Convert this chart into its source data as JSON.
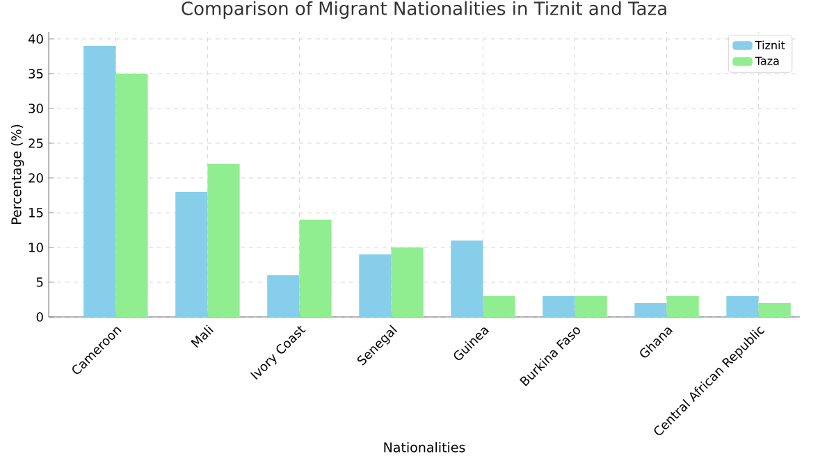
{
  "chart_data": {
    "type": "bar",
    "title": "Comparison of Migrant Nationalities in Tiznit and Taza",
    "xlabel": "Nationalities",
    "ylabel": "Percentage (%)",
    "categories": [
      "Cameroon",
      "Mali",
      "Ivory Coast",
      "Senegal",
      "Guinea",
      "Burkina Faso",
      "Ghana",
      "Central African Republic"
    ],
    "series": [
      {
        "name": "Tiznit",
        "color": "#87ceeb",
        "values": [
          39,
          18,
          6,
          9,
          11,
          3,
          2,
          3
        ]
      },
      {
        "name": "Taza",
        "color": "#90ee90",
        "values": [
          35,
          22,
          14,
          10,
          3,
          3,
          3,
          2
        ]
      }
    ],
    "ylim": [
      0,
      41
    ],
    "yticks": [
      0,
      5,
      10,
      15,
      20,
      25,
      30,
      35,
      40
    ],
    "grid": true,
    "legend": "top right"
  }
}
